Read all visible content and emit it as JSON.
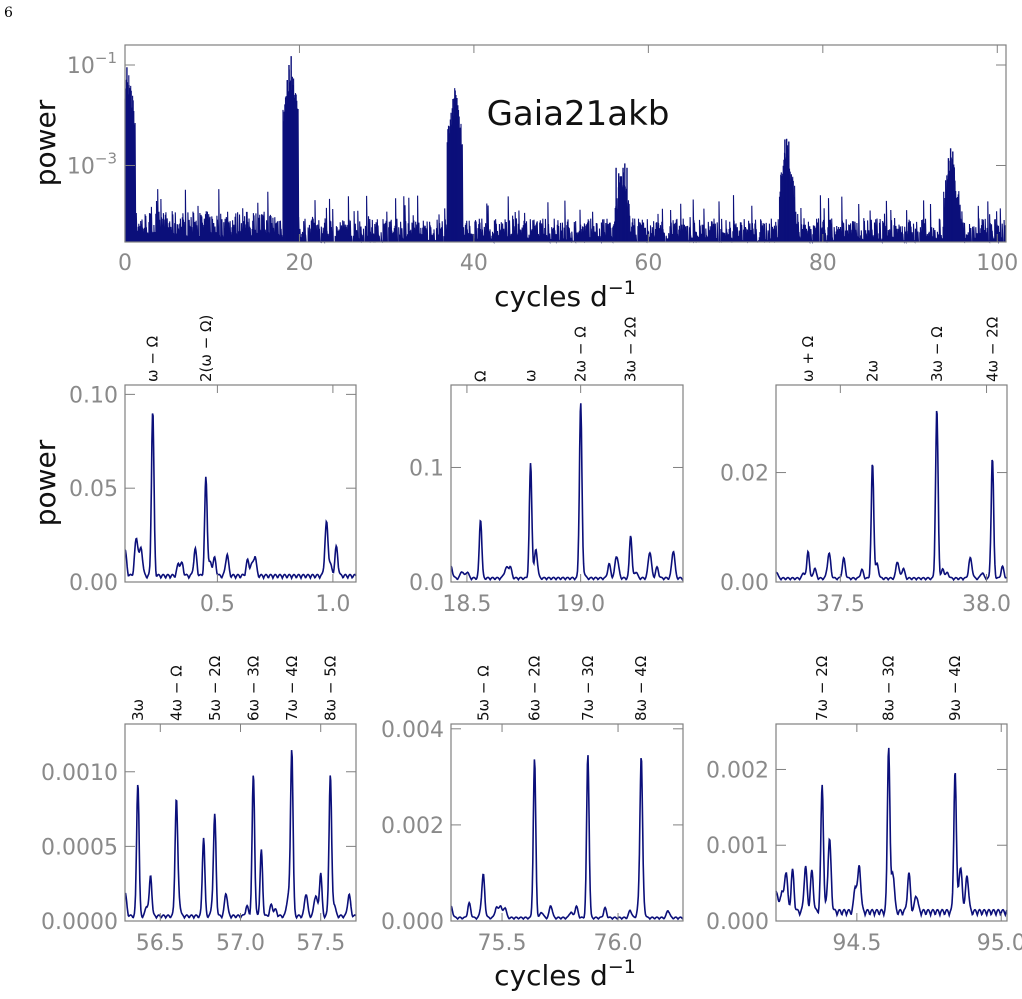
{
  "page_number": "6",
  "colors": {
    "line": "#0b0f7a",
    "axis": "#808080",
    "tick_text": "#8a8a8a",
    "label_text": "#111111"
  },
  "shared_labels": {
    "ylabel": "power",
    "xlabel_main": "cycles d",
    "xlabel_sup": "−1"
  },
  "chart_data": [
    {
      "type": "line",
      "title": "Gaia21akb",
      "yscale": "log",
      "xlim": [
        0,
        101
      ],
      "ylim": [
        3e-05,
        0.25
      ],
      "xticks": [
        0,
        20,
        40,
        60,
        80,
        100
      ],
      "yticks": [
        0.1,
        0.001
      ],
      "yticklabels": [
        "10−1",
        "10−3"
      ],
      "peaks": [
        {
          "x": 0.22,
          "y": 0.09
        },
        {
          "x": 0.45,
          "y": 0.04
        },
        {
          "x": 18.6,
          "y": 0.05
        },
        {
          "x": 18.8,
          "y": 0.1
        },
        {
          "x": 19.05,
          "y": 0.15
        },
        {
          "x": 19.25,
          "y": 0.04
        },
        {
          "x": 37.4,
          "y": 0.005
        },
        {
          "x": 37.6,
          "y": 0.021
        },
        {
          "x": 37.85,
          "y": 0.031
        },
        {
          "x": 38.05,
          "y": 0.022
        },
        {
          "x": 56.3,
          "y": 0.0009
        },
        {
          "x": 56.6,
          "y": 0.0007
        },
        {
          "x": 57.1,
          "y": 0.0009
        },
        {
          "x": 57.3,
          "y": 0.0011
        },
        {
          "x": 57.55,
          "y": 0.0009
        },
        {
          "x": 75.65,
          "y": 0.0033
        },
        {
          "x": 75.85,
          "y": 0.0034
        },
        {
          "x": 76.1,
          "y": 0.003
        },
        {
          "x": 94.4,
          "y": 0.0014
        },
        {
          "x": 94.65,
          "y": 0.0022
        },
        {
          "x": 94.9,
          "y": 0.0019
        }
      ]
    },
    {
      "type": "line",
      "xlim": [
        0.1,
        1.1
      ],
      "ylim": [
        0,
        0.105
      ],
      "xticks": [
        0.5,
        1.0
      ],
      "xticklabels": [
        "0.5",
        "1.0"
      ],
      "yticks": [
        0,
        0.05,
        0.1
      ],
      "yticklabels": [
        "0.00",
        "0.05",
        "0.10"
      ],
      "annotations": [
        {
          "x": 0.22,
          "label": "ω − Ω"
        },
        {
          "x": 0.45,
          "label": "2(ω − Ω)"
        }
      ],
      "peaks": [
        {
          "x": 0.22,
          "y": 0.088
        },
        {
          "x": 0.45,
          "y": 0.045
        }
      ],
      "baseline": 0.004
    },
    {
      "type": "line",
      "xlim": [
        18.43,
        19.45
      ],
      "ylim": [
        0,
        0.172
      ],
      "xticks": [
        18.5,
        19.0
      ],
      "xticklabels": [
        "18.5",
        "19.0"
      ],
      "yticks": [
        0,
        0.1
      ],
      "yticklabels": [
        "0.0",
        "0.1"
      ],
      "annotations": [
        {
          "x": 18.56,
          "label": "Ω"
        },
        {
          "x": 18.78,
          "label": "ω"
        },
        {
          "x": 19.0,
          "label": "2ω − Ω"
        },
        {
          "x": 19.22,
          "label": "3ω − 2Ω"
        }
      ],
      "peaks": [
        {
          "x": 18.56,
          "y": 0.052
        },
        {
          "x": 18.78,
          "y": 0.1
        },
        {
          "x": 19.0,
          "y": 0.153
        },
        {
          "x": 19.22,
          "y": 0.038
        }
      ],
      "baseline": 0.004
    },
    {
      "type": "line",
      "xlim": [
        37.28,
        38.07
      ],
      "ylim": [
        0,
        0.036
      ],
      "xticks": [
        37.5,
        38.0
      ],
      "xticklabels": [
        "37.5",
        "38.0"
      ],
      "yticks": [
        0,
        0.02
      ],
      "yticklabels": [
        "0.00",
        "0.02"
      ],
      "annotations": [
        {
          "x": 37.39,
          "label": "ω + Ω"
        },
        {
          "x": 37.61,
          "label": "2ω"
        },
        {
          "x": 37.83,
          "label": "3ω − Ω"
        },
        {
          "x": 38.02,
          "label": "4ω − 2Ω"
        }
      ],
      "peaks": [
        {
          "x": 37.39,
          "y": 0.005
        },
        {
          "x": 37.61,
          "y": 0.021
        },
        {
          "x": 37.83,
          "y": 0.031
        },
        {
          "x": 38.02,
          "y": 0.022
        }
      ],
      "baseline": 0.0008
    },
    {
      "type": "line",
      "xlim": [
        56.28,
        57.72
      ],
      "ylim": [
        0,
        0.00132
      ],
      "xticks": [
        56.5,
        57.0,
        57.5
      ],
      "xticklabels": [
        "56.5",
        "57.0",
        "57.5"
      ],
      "yticks": [
        0,
        0.0005,
        0.001
      ],
      "yticklabels": [
        "0.0000",
        "0.0005",
        "0.0010"
      ],
      "annotations": [
        {
          "x": 56.36,
          "label": "3ω"
        },
        {
          "x": 56.6,
          "label": "4ω − Ω"
        },
        {
          "x": 56.84,
          "label": "5ω − 2Ω"
        },
        {
          "x": 57.08,
          "label": "6ω − 3Ω"
        },
        {
          "x": 57.32,
          "label": "7ω − 4Ω"
        },
        {
          "x": 57.56,
          "label": "8ω − 5Ω"
        }
      ],
      "peaks": [
        {
          "x": 56.36,
          "y": 0.0009
        },
        {
          "x": 56.44,
          "y": 0.00027
        },
        {
          "x": 56.6,
          "y": 0.00069
        },
        {
          "x": 56.77,
          "y": 0.00053
        },
        {
          "x": 56.84,
          "y": 0.00062
        },
        {
          "x": 57.08,
          "y": 0.00088
        },
        {
          "x": 57.13,
          "y": 0.00044
        },
        {
          "x": 57.32,
          "y": 0.0011
        },
        {
          "x": 57.5,
          "y": 0.00029
        },
        {
          "x": 57.56,
          "y": 0.00089
        }
      ],
      "baseline": 4e-05
    },
    {
      "type": "line",
      "xlim": [
        75.28,
        76.28
      ],
      "ylim": [
        0,
        0.0041
      ],
      "xticks": [
        75.5,
        76.0
      ],
      "xticklabels": [
        "75.5",
        "76.0"
      ],
      "yticks": [
        0,
        0.002,
        0.004
      ],
      "yticklabels": [
        "0.000",
        "0.002",
        "0.004"
      ],
      "annotations": [
        {
          "x": 75.42,
          "label": "5ω − Ω"
        },
        {
          "x": 75.64,
          "label": "6ω − 2Ω"
        },
        {
          "x": 75.87,
          "label": "7ω − 3Ω"
        },
        {
          "x": 76.1,
          "label": "8ω − 4Ω"
        }
      ],
      "peaks": [
        {
          "x": 75.42,
          "y": 0.0007
        },
        {
          "x": 75.64,
          "y": 0.0033
        },
        {
          "x": 75.87,
          "y": 0.0034
        },
        {
          "x": 76.1,
          "y": 0.003
        }
      ],
      "baseline": 8e-05
    },
    {
      "type": "line",
      "xlim": [
        94.22,
        95.02
      ],
      "ylim": [
        0,
        0.0026
      ],
      "xticks": [
        94.5,
        95.0
      ],
      "xticklabels": [
        "94.5",
        "95.0"
      ],
      "yticks": [
        0,
        0.001,
        0.002
      ],
      "yticklabels": [
        "0.000",
        "0.001",
        "0.002"
      ],
      "annotations": [
        {
          "x": 94.38,
          "label": "7ω − 2Ω"
        },
        {
          "x": 94.61,
          "label": "8ω − 3Ω"
        },
        {
          "x": 94.84,
          "label": "9ω − 4Ω"
        }
      ],
      "peaks": [
        {
          "x": 94.38,
          "y": 0.00135
        },
        {
          "x": 94.61,
          "y": 0.0022
        },
        {
          "x": 94.84,
          "y": 0.00185
        }
      ],
      "baseline": 0.00015
    }
  ]
}
